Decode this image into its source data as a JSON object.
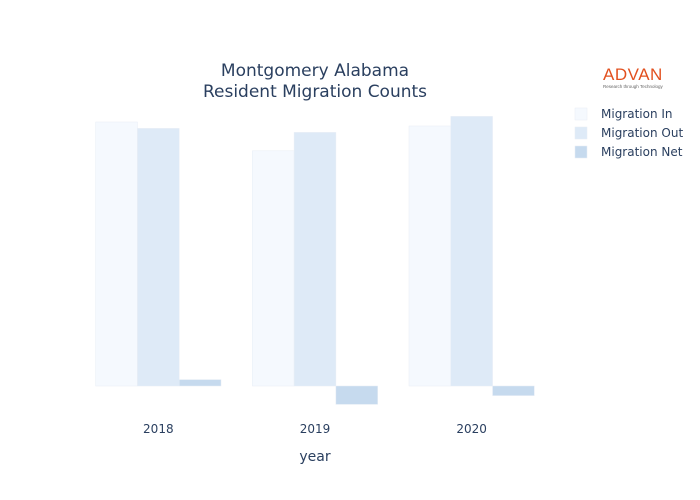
{
  "logo": {
    "name": "ADVAN",
    "tagline": "Research through Technology"
  },
  "colors": {
    "migration_in": "#f5f9fe",
    "migration_out": "#deeaf7",
    "migration_net": "#c6daee",
    "text": "#2a3f5f",
    "logo": "#e2501f"
  },
  "chart_data": {
    "type": "bar",
    "title": "Montgomery Alabama",
    "subtitle": "Resident Migration Counts",
    "xlabel": "year",
    "ylabel": "",
    "categories": [
      "2018",
      "2019",
      "2020"
    ],
    "series": [
      {
        "name": "Migration In",
        "values": [
          3300,
          2940,
          3250
        ]
      },
      {
        "name": "Migration Out",
        "values": [
          3220,
          3170,
          3370
        ]
      },
      {
        "name": "Migration Net",
        "values": [
          80,
          -230,
          -120
        ]
      }
    ],
    "ylim": [
      -300,
      3450
    ],
    "grid": false,
    "y_tick_labels_visible": false,
    "legend_position": "top-right"
  }
}
